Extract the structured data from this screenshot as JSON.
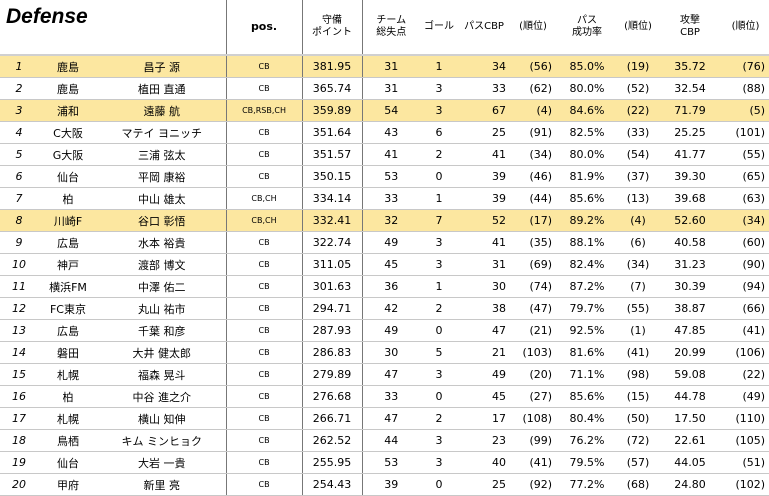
{
  "title": "Defense",
  "headers": {
    "pos": "pos.",
    "score": [
      "守備",
      "ポイント"
    ],
    "team_conceded": [
      "チーム",
      "総失点"
    ],
    "goals": [
      "ゴール"
    ],
    "pass_cbp": [
      "パスCBP"
    ],
    "rank1": [
      "(順位)"
    ],
    "pass_rate": [
      "パス",
      "成功率"
    ],
    "rank2": [
      "(順位)"
    ],
    "attack_cbp": [
      "攻撃",
      "CBP"
    ],
    "rank3": [
      "(順位)"
    ]
  },
  "highlight_color": "#fce7a0",
  "rows": [
    {
      "rank": "1",
      "team": "鹿島",
      "name": "昌子 源",
      "pos": "CB",
      "score": "381.95",
      "conceded": "31",
      "goals": "1",
      "pass_cbp": "34",
      "pass_cbp_rank": "(56)",
      "pass_rate": "85.0%",
      "pass_rate_rank": "(19)",
      "attack_cbp": "35.72",
      "attack_cbp_rank": "(76)",
      "highlight": true
    },
    {
      "rank": "2",
      "team": "鹿島",
      "name": "植田 直通",
      "pos": "CB",
      "score": "365.74",
      "conceded": "31",
      "goals": "3",
      "pass_cbp": "33",
      "pass_cbp_rank": "(62)",
      "pass_rate": "80.0%",
      "pass_rate_rank": "(52)",
      "attack_cbp": "32.54",
      "attack_cbp_rank": "(88)",
      "highlight": false
    },
    {
      "rank": "3",
      "team": "浦和",
      "name": "遠藤 航",
      "pos": "CB,RSB,CH",
      "score": "359.89",
      "conceded": "54",
      "goals": "3",
      "pass_cbp": "67",
      "pass_cbp_rank": "(4)",
      "pass_rate": "84.6%",
      "pass_rate_rank": "(22)",
      "attack_cbp": "71.79",
      "attack_cbp_rank": "(5)",
      "highlight": true
    },
    {
      "rank": "4",
      "team": "C大阪",
      "name": "マテイ ヨニッチ",
      "pos": "CB",
      "score": "351.64",
      "conceded": "43",
      "goals": "6",
      "pass_cbp": "25",
      "pass_cbp_rank": "(91)",
      "pass_rate": "82.5%",
      "pass_rate_rank": "(33)",
      "attack_cbp": "25.25",
      "attack_cbp_rank": "(101)",
      "highlight": false
    },
    {
      "rank": "5",
      "team": "G大阪",
      "name": "三浦 弦太",
      "pos": "CB",
      "score": "351.57",
      "conceded": "41",
      "goals": "2",
      "pass_cbp": "41",
      "pass_cbp_rank": "(34)",
      "pass_rate": "80.0%",
      "pass_rate_rank": "(54)",
      "attack_cbp": "41.77",
      "attack_cbp_rank": "(55)",
      "highlight": false
    },
    {
      "rank": "6",
      "team": "仙台",
      "name": "平岡 康裕",
      "pos": "CB",
      "score": "350.15",
      "conceded": "53",
      "goals": "0",
      "pass_cbp": "39",
      "pass_cbp_rank": "(46)",
      "pass_rate": "81.9%",
      "pass_rate_rank": "(37)",
      "attack_cbp": "39.30",
      "attack_cbp_rank": "(65)",
      "highlight": false
    },
    {
      "rank": "7",
      "team": "柏",
      "name": "中山 雄太",
      "pos": "CB,CH",
      "score": "334.14",
      "conceded": "33",
      "goals": "1",
      "pass_cbp": "39",
      "pass_cbp_rank": "(44)",
      "pass_rate": "85.6%",
      "pass_rate_rank": "(13)",
      "attack_cbp": "39.68",
      "attack_cbp_rank": "(63)",
      "highlight": false
    },
    {
      "rank": "8",
      "team": "川崎F",
      "name": "谷口 彰悟",
      "pos": "CB,CH",
      "score": "332.41",
      "conceded": "32",
      "goals": "7",
      "pass_cbp": "52",
      "pass_cbp_rank": "(17)",
      "pass_rate": "89.2%",
      "pass_rate_rank": "(4)",
      "attack_cbp": "52.60",
      "attack_cbp_rank": "(34)",
      "highlight": true
    },
    {
      "rank": "9",
      "team": "広島",
      "name": "水本 裕貴",
      "pos": "CB",
      "score": "322.74",
      "conceded": "49",
      "goals": "3",
      "pass_cbp": "41",
      "pass_cbp_rank": "(35)",
      "pass_rate": "88.1%",
      "pass_rate_rank": "(6)",
      "attack_cbp": "40.58",
      "attack_cbp_rank": "(60)",
      "highlight": false
    },
    {
      "rank": "10",
      "team": "神戸",
      "name": "渡部 博文",
      "pos": "CB",
      "score": "311.05",
      "conceded": "45",
      "goals": "3",
      "pass_cbp": "31",
      "pass_cbp_rank": "(69)",
      "pass_rate": "82.4%",
      "pass_rate_rank": "(34)",
      "attack_cbp": "31.23",
      "attack_cbp_rank": "(90)",
      "highlight": false
    },
    {
      "rank": "11",
      "team": "横浜FM",
      "name": "中澤 佑二",
      "pos": "CB",
      "score": "301.63",
      "conceded": "36",
      "goals": "1",
      "pass_cbp": "30",
      "pass_cbp_rank": "(74)",
      "pass_rate": "87.2%",
      "pass_rate_rank": "(7)",
      "attack_cbp": "30.39",
      "attack_cbp_rank": "(94)",
      "highlight": false
    },
    {
      "rank": "12",
      "team": "FC東京",
      "name": "丸山 祐市",
      "pos": "CB",
      "score": "294.71",
      "conceded": "42",
      "goals": "2",
      "pass_cbp": "38",
      "pass_cbp_rank": "(47)",
      "pass_rate": "79.7%",
      "pass_rate_rank": "(55)",
      "attack_cbp": "38.87",
      "attack_cbp_rank": "(66)",
      "highlight": false
    },
    {
      "rank": "13",
      "team": "広島",
      "name": "千葉 和彦",
      "pos": "CB",
      "score": "287.93",
      "conceded": "49",
      "goals": "0",
      "pass_cbp": "47",
      "pass_cbp_rank": "(21)",
      "pass_rate": "92.5%",
      "pass_rate_rank": "(1)",
      "attack_cbp": "47.85",
      "attack_cbp_rank": "(41)",
      "highlight": false
    },
    {
      "rank": "14",
      "team": "磐田",
      "name": "大井 健太郎",
      "pos": "CB",
      "score": "286.83",
      "conceded": "30",
      "goals": "5",
      "pass_cbp": "21",
      "pass_cbp_rank": "(103)",
      "pass_rate": "81.6%",
      "pass_rate_rank": "(41)",
      "attack_cbp": "20.99",
      "attack_cbp_rank": "(106)",
      "highlight": false
    },
    {
      "rank": "15",
      "team": "札幌",
      "name": "福森 晃斗",
      "pos": "CB",
      "score": "279.89",
      "conceded": "47",
      "goals": "3",
      "pass_cbp": "49",
      "pass_cbp_rank": "(20)",
      "pass_rate": "71.1%",
      "pass_rate_rank": "(98)",
      "attack_cbp": "59.08",
      "attack_cbp_rank": "(22)",
      "highlight": false
    },
    {
      "rank": "16",
      "team": "柏",
      "name": "中谷 進之介",
      "pos": "CB",
      "score": "276.68",
      "conceded": "33",
      "goals": "0",
      "pass_cbp": "45",
      "pass_cbp_rank": "(27)",
      "pass_rate": "85.6%",
      "pass_rate_rank": "(15)",
      "attack_cbp": "44.78",
      "attack_cbp_rank": "(49)",
      "highlight": false
    },
    {
      "rank": "17",
      "team": "札幌",
      "name": "横山 知伸",
      "pos": "CB",
      "score": "266.71",
      "conceded": "47",
      "goals": "2",
      "pass_cbp": "17",
      "pass_cbp_rank": "(108)",
      "pass_rate": "80.4%",
      "pass_rate_rank": "(50)",
      "attack_cbp": "17.50",
      "attack_cbp_rank": "(110)",
      "highlight": false
    },
    {
      "rank": "18",
      "team": "鳥栖",
      "name": "キム ミンヒョク",
      "pos": "CB",
      "score": "262.52",
      "conceded": "44",
      "goals": "3",
      "pass_cbp": "23",
      "pass_cbp_rank": "(99)",
      "pass_rate": "76.2%",
      "pass_rate_rank": "(72)",
      "attack_cbp": "22.61",
      "attack_cbp_rank": "(105)",
      "highlight": false
    },
    {
      "rank": "19",
      "team": "仙台",
      "name": "大岩 一貴",
      "pos": "CB",
      "score": "255.95",
      "conceded": "53",
      "goals": "3",
      "pass_cbp": "40",
      "pass_cbp_rank": "(41)",
      "pass_rate": "79.5%",
      "pass_rate_rank": "(57)",
      "attack_cbp": "44.05",
      "attack_cbp_rank": "(51)",
      "highlight": false
    },
    {
      "rank": "20",
      "team": "甲府",
      "name": "新里 亮",
      "pos": "CB",
      "score": "254.43",
      "conceded": "39",
      "goals": "0",
      "pass_cbp": "25",
      "pass_cbp_rank": "(92)",
      "pass_rate": "77.2%",
      "pass_rate_rank": "(68)",
      "attack_cbp": "24.80",
      "attack_cbp_rank": "(102)",
      "highlight": false
    }
  ]
}
